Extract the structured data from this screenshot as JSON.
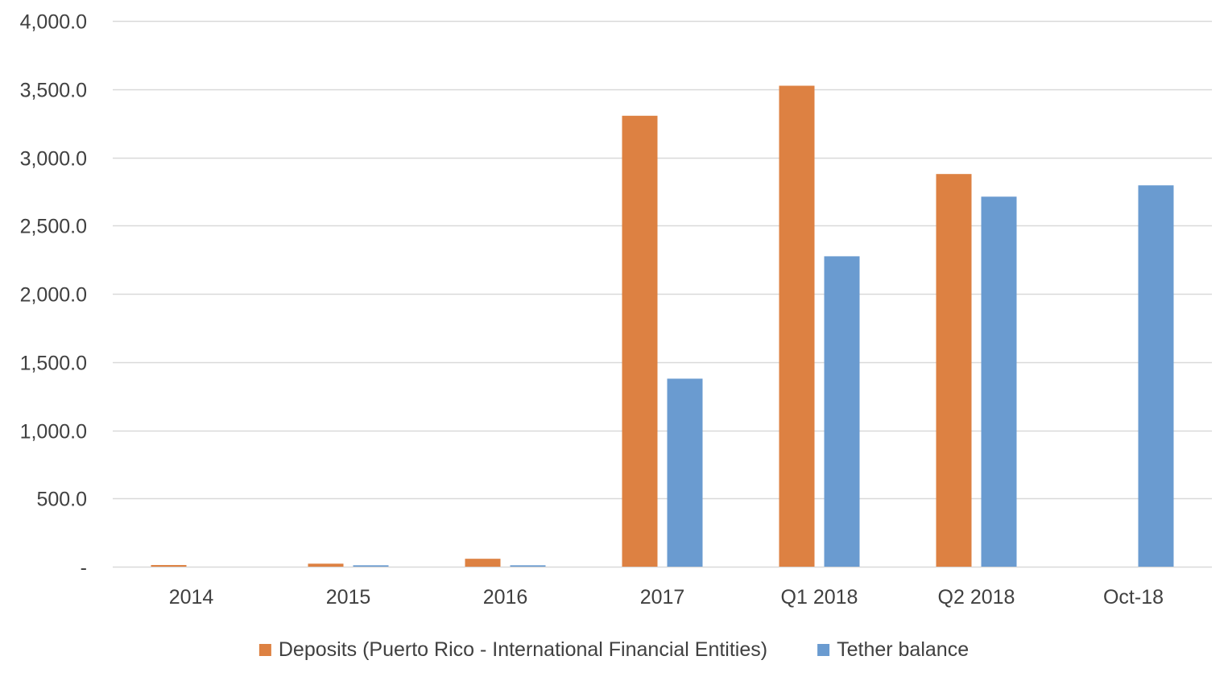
{
  "chart_data": {
    "type": "bar",
    "categories": [
      "2014",
      "2015",
      "2016",
      "2017",
      "Q1 2018",
      "Q2 2018",
      "Oct-18"
    ],
    "series": [
      {
        "name": "Deposits (Puerto Rico - International Financial Entities)",
        "color": "#DD8142",
        "values": [
          12,
          22,
          58,
          3305,
          3525,
          2878,
          0
        ]
      },
      {
        "name": "Tether balance",
        "color": "#6A9BD0",
        "values": [
          0,
          10,
          10,
          1378,
          2275,
          2712,
          2795
        ]
      }
    ],
    "ylim": [
      0,
      4000
    ],
    "yticks": [
      0,
      500,
      1000,
      1500,
      2000,
      2500,
      3000,
      3500,
      4000
    ],
    "ytick_labels": [
      "-",
      "500.0",
      "1,000.0",
      "1,500.0",
      "2,000.0",
      "2,500.0",
      "3,000.0",
      "3,500.0",
      "4,000.0"
    ],
    "grid": true,
    "legend_position": "bottom",
    "title": "",
    "xlabel": "",
    "ylabel": "",
    "gridline_color": "#D9D9D9"
  }
}
